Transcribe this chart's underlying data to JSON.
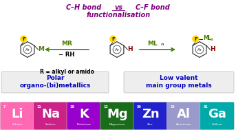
{
  "title_ch": "C–H bond",
  "title_cf": "C–F bond",
  "title_vs": "vs",
  "title_func": "functionalisation",
  "r_label": "R = alkyl or amido",
  "left_label": "Polar\norgano-(bi)metallics",
  "right_label": "Low valent\nmain group metals",
  "arrow_left_label1": "MR",
  "arrow_left_label2": "− RH",
  "arrow_right_label": "MLn",
  "elements": [
    {
      "symbol": "Li",
      "name": "Lithium",
      "number": "7",
      "color": "#FF69B4"
    },
    {
      "symbol": "Na",
      "name": "Sodium",
      "number": "11",
      "color": "#CC2288"
    },
    {
      "symbol": "K",
      "name": "Potassium",
      "number": "19",
      "color": "#9900CC"
    },
    {
      "symbol": "Mg",
      "name": "Magnesium",
      "number": "12",
      "color": "#1A6B1A"
    },
    {
      "symbol": "Zn",
      "name": "Zinc",
      "number": "30",
      "color": "#2222CC"
    },
    {
      "symbol": "Al",
      "name": "Aluminium",
      "number": "13",
      "color": "#9999CC"
    },
    {
      "symbol": "Ga",
      "name": "Gallium",
      "number": "31",
      "color": "#00AAAA"
    }
  ],
  "bg_color": "#FFFFFF",
  "title_color": "#800080",
  "green_color": "#4A7C00",
  "dark_red": "#8B0000",
  "blue_label": "#0000BB"
}
